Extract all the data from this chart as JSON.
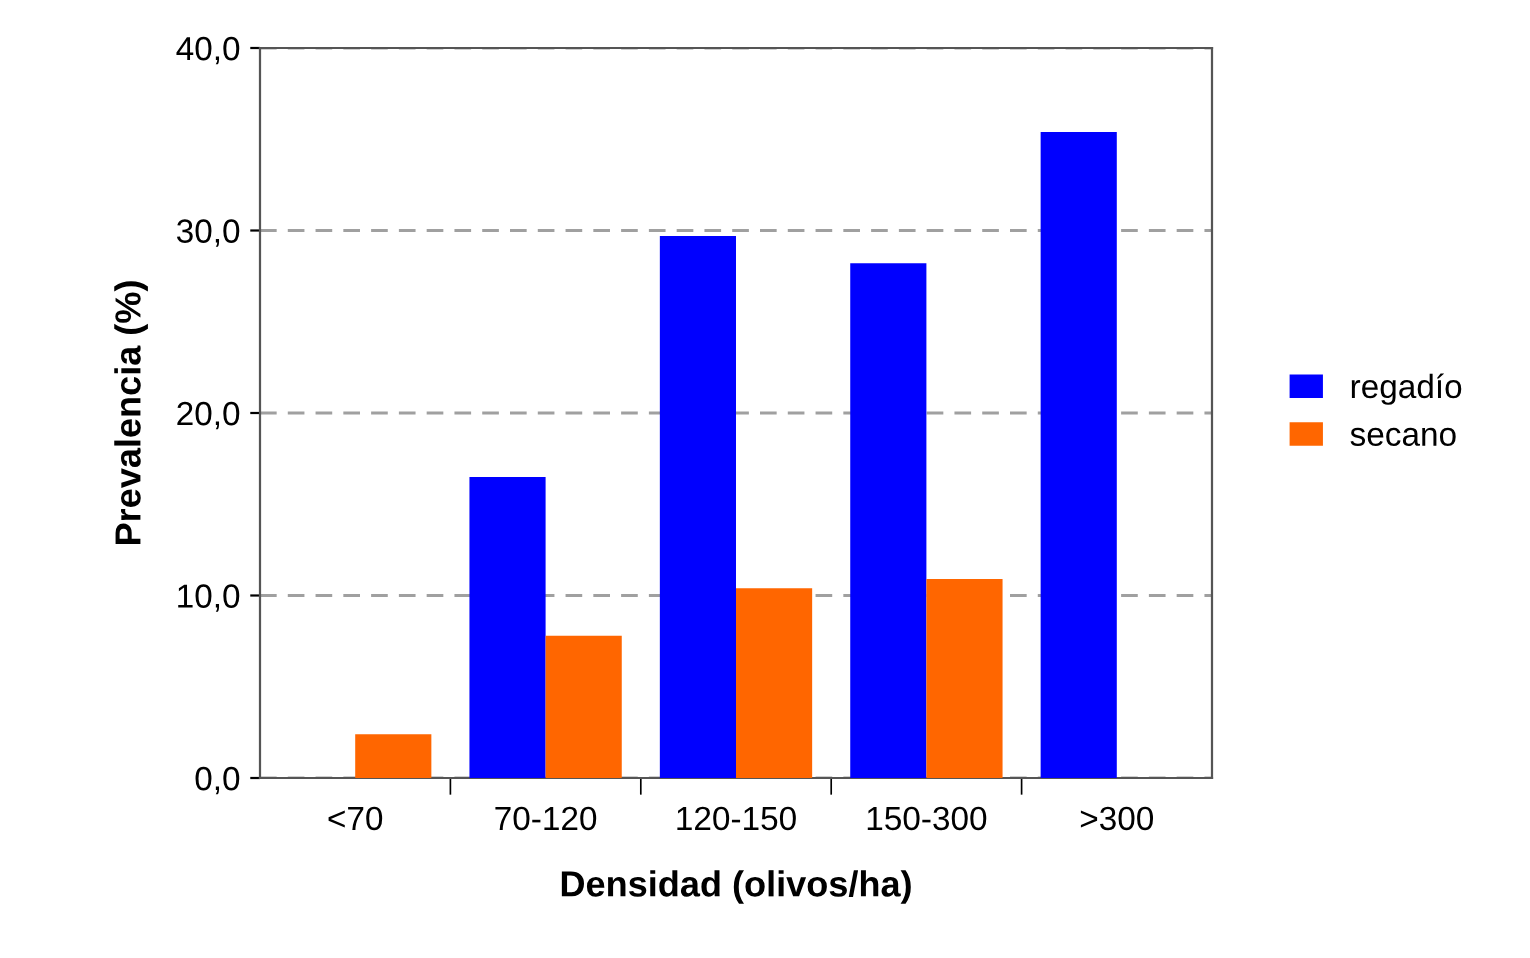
{
  "chart_data": {
    "type": "bar",
    "xlabel": "Densidad (olivos/ha)",
    "ylabel": "Prevalencia (%)",
    "categories": [
      "<70",
      "70-120",
      "120-150",
      "150-300",
      ">300"
    ],
    "series": [
      {
        "name": "regadío",
        "color": "#0000ff",
        "values": [
          null,
          16.5,
          29.7,
          28.2,
          35.4
        ]
      },
      {
        "name": "secano",
        "color": "#ff6600",
        "values": [
          2.4,
          7.8,
          10.4,
          10.9,
          null
        ]
      }
    ],
    "ylim": [
      0,
      40
    ],
    "yticks": [
      {
        "value": 0,
        "label": "0,0"
      },
      {
        "value": 10,
        "label": "10,0"
      },
      {
        "value": 20,
        "label": "20,0"
      },
      {
        "value": 30,
        "label": "30,0"
      },
      {
        "value": 40,
        "label": "40,0"
      }
    ],
    "grid": "y",
    "line_style": "dashed",
    "legend": "right"
  }
}
